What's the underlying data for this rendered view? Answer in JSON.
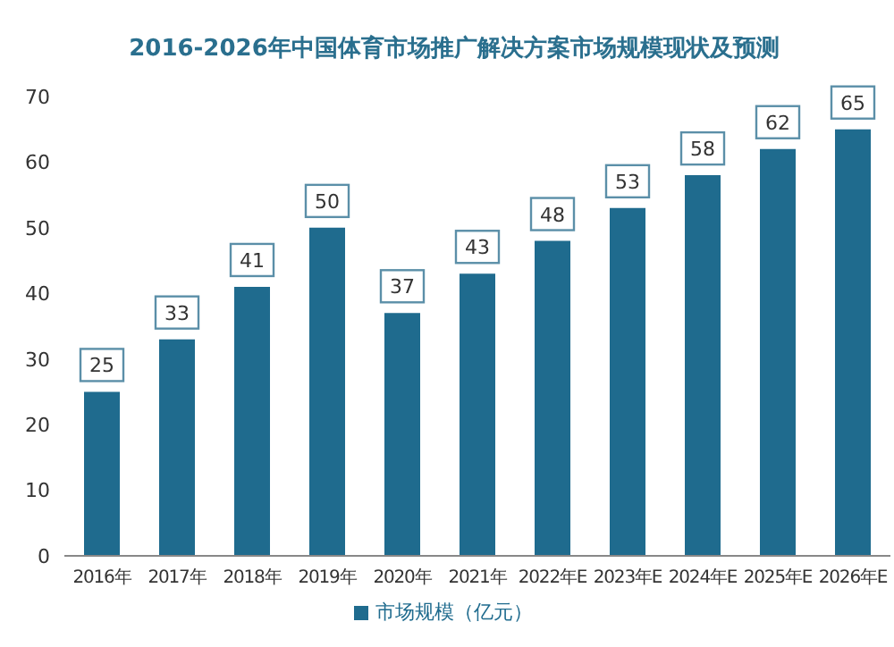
{
  "chart_data": {
    "type": "bar",
    "title": "2016-2026年中国体育市场推广解决方案市场规模现状及预测",
    "categories": [
      "2016年",
      "2017年",
      "2018年",
      "2019年",
      "2020年",
      "2021年",
      "2022年E",
      "2023年E",
      "2024年E",
      "2025年E",
      "2026年E"
    ],
    "series": [
      {
        "name": "市场规模（亿元）",
        "color": "#1f6b8e",
        "values": [
          25,
          33,
          41,
          50,
          37,
          43,
          48,
          53,
          58,
          62,
          65
        ]
      }
    ],
    "ylim": [
      0,
      70
    ],
    "yticks": [
      0,
      10,
      20,
      30,
      40,
      50,
      60,
      70
    ],
    "data_labels": true,
    "legend": "bottom"
  }
}
